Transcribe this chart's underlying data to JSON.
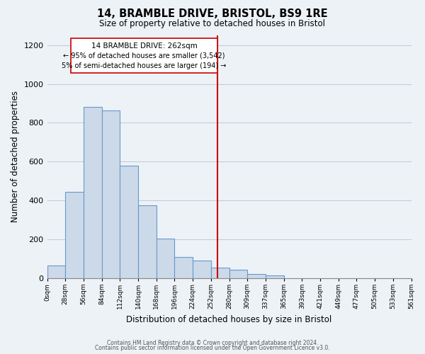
{
  "title": "14, BRAMBLE DRIVE, BRISTOL, BS9 1RE",
  "subtitle": "Size of property relative to detached houses in Bristol",
  "xlabel": "Distribution of detached houses by size in Bristol",
  "ylabel": "Number of detached properties",
  "bin_labels": [
    "0sqm",
    "28sqm",
    "56sqm",
    "84sqm",
    "112sqm",
    "140sqm",
    "168sqm",
    "196sqm",
    "224sqm",
    "252sqm",
    "280sqm",
    "309sqm",
    "337sqm",
    "365sqm",
    "393sqm",
    "421sqm",
    "449sqm",
    "477sqm",
    "505sqm",
    "533sqm",
    "561sqm"
  ],
  "bar_heights": [
    65,
    445,
    880,
    865,
    580,
    375,
    205,
    110,
    90,
    55,
    43,
    20,
    15,
    0,
    0,
    0,
    0,
    0,
    0,
    0
  ],
  "bar_color": "#ccd9e8",
  "bar_edge_color": "#6699cc",
  "vline_color": "#cc0000",
  "annotation_title": "14 BRAMBLE DRIVE: 262sqm",
  "annotation_line1": "← 95% of detached houses are smaller (3,542)",
  "annotation_line2": "5% of semi-detached houses are larger (194) →",
  "annotation_box_color": "white",
  "annotation_box_edge": "#cc0000",
  "ylim": [
    0,
    1250
  ],
  "yticks": [
    0,
    200,
    400,
    600,
    800,
    1000,
    1200
  ],
  "footer1": "Contains HM Land Registry data © Crown copyright and database right 2024.",
  "footer2": "Contains public sector information licensed under the Open Government Licence v3.0.",
  "bg_color": "#edf2f7"
}
